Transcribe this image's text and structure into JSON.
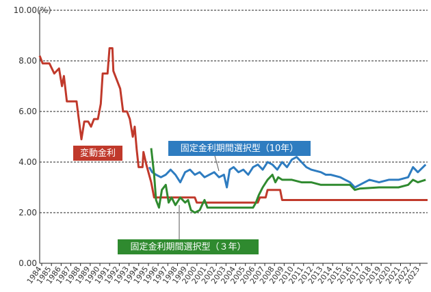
{
  "chart_data": {
    "type": "line",
    "y_unit": "(%)",
    "xlim": [
      1984,
      2024
    ],
    "xticks": [
      1984,
      1985,
      1986,
      1987,
      1988,
      1989,
      1990,
      1991,
      1992,
      1993,
      1994,
      1995,
      1996,
      1997,
      1998,
      1999,
      2000,
      2001,
      2002,
      2003,
      2004,
      2005,
      2006,
      2007,
      2008,
      2009,
      2010,
      2011,
      2012,
      2013,
      2014,
      2015,
      2016,
      2017,
      2018,
      2019,
      2020,
      2021,
      2022,
      2023
    ],
    "ylim": [
      0,
      10
    ],
    "yticks": [
      {
        "value": 0,
        "label": "0.00"
      },
      {
        "value": 2,
        "label": "2.00"
      },
      {
        "value": 4,
        "label": "4.00"
      },
      {
        "value": 6,
        "label": "6.00"
      },
      {
        "value": 8,
        "label": "8.00"
      },
      {
        "value": 10,
        "label": "10.00"
      }
    ],
    "grid": true,
    "series": [
      {
        "name": "変動金利",
        "color": "#c0392b",
        "x": [
          1984,
          1984.3,
          1985,
          1985.5,
          1986,
          1986.3,
          1986.5,
          1986.8,
          1987.8,
          1988.0,
          1988.3,
          1988.6,
          1989,
          1989.3,
          1989.6,
          1990,
          1990.3,
          1990.5,
          1991,
          1991.2,
          1991.5,
          1991.6,
          1991.9,
          1992.3,
          1992.6,
          1993,
          1993.3,
          1993.6,
          1993.8,
          1994,
          1994.2,
          1994.6,
          1994.7,
          1995,
          1995.5,
          1995.8,
          2000,
          2000.2,
          2006.5,
          2006.7,
          2007.3,
          2007.5,
          2008.8,
          2009,
          2024
        ],
        "values": [
          8.2,
          7.9,
          7.9,
          7.5,
          7.7,
          7.0,
          7.4,
          6.4,
          6.4,
          5.8,
          4.9,
          5.6,
          5.6,
          5.4,
          5.7,
          5.7,
          6.3,
          7.5,
          7.5,
          8.5,
          8.5,
          7.6,
          7.3,
          6.9,
          6.0,
          6.0,
          5.7,
          5.0,
          5.4,
          4.5,
          3.8,
          3.8,
          4.4,
          3.9,
          3.2,
          2.6,
          2.6,
          2.4,
          2.4,
          2.6,
          2.6,
          2.9,
          2.9,
          2.5,
          2.5
        ]
      },
      {
        "name": "固定金利期間選択型（10年）",
        "color": "#2e7cc0",
        "x": [
          1995.3,
          1995.6,
          1996,
          1996.5,
          1997,
          1997.5,
          1998,
          1998.5,
          1999,
          1999.5,
          2000,
          2000.5,
          2001,
          2002,
          2002.5,
          2003,
          2003.3,
          2003.6,
          2004,
          2004.5,
          2005,
          2005.5,
          2006,
          2006.5,
          2007,
          2007.5,
          2008,
          2008.5,
          2009,
          2009.5,
          2010,
          2010.5,
          2011,
          2011.5,
          2012,
          2013,
          2013.5,
          2014,
          2015,
          2015.5,
          2016,
          2016.5,
          2017,
          2018,
          2019,
          2020,
          2021,
          2022,
          2022.5,
          2023,
          2023.8
        ],
        "values": [
          3.8,
          3.6,
          3.5,
          3.4,
          3.5,
          3.7,
          3.5,
          3.2,
          3.6,
          3.7,
          3.5,
          3.6,
          3.4,
          3.6,
          3.4,
          3.5,
          3.0,
          3.7,
          3.8,
          3.6,
          3.7,
          3.5,
          3.8,
          3.9,
          3.7,
          4.0,
          3.9,
          3.7,
          4.0,
          3.8,
          4.1,
          4.2,
          4.0,
          3.8,
          3.7,
          3.6,
          3.5,
          3.5,
          3.4,
          3.3,
          3.2,
          3.0,
          3.1,
          3.3,
          3.2,
          3.3,
          3.3,
          3.4,
          3.8,
          3.6,
          3.9
        ]
      },
      {
        "name": "固定金利期間選択型（３年）",
        "color": "#2f8a2f",
        "x": [
          1995.5,
          1995.8,
          1996,
          1996.3,
          1996.6,
          1997,
          1997.3,
          1997.6,
          1998,
          1998.5,
          1999,
          1999.3,
          1999.6,
          2000,
          2000.5,
          2000.8,
          2001,
          2001.3,
          2002,
          2006,
          2006.3,
          2006.6,
          2007,
          2007.5,
          2008,
          2008.3,
          2008.6,
          2009,
          2010,
          2011,
          2012,
          2013,
          2016,
          2016.5,
          2017,
          2019,
          2021,
          2022,
          2022.5,
          2023,
          2023.8
        ],
        "values": [
          4.55,
          3.5,
          2.5,
          2.2,
          2.9,
          3.1,
          2.4,
          2.6,
          2.3,
          2.6,
          2.4,
          2.5,
          2.1,
          2.0,
          2.1,
          2.35,
          2.5,
          2.2,
          2.2,
          2.2,
          2.4,
          2.7,
          3.0,
          3.3,
          3.5,
          3.2,
          3.4,
          3.3,
          3.3,
          3.2,
          3.2,
          3.1,
          3.1,
          2.9,
          2.95,
          3.0,
          3.0,
          3.1,
          3.3,
          3.2,
          3.3
        ]
      }
    ]
  }
}
